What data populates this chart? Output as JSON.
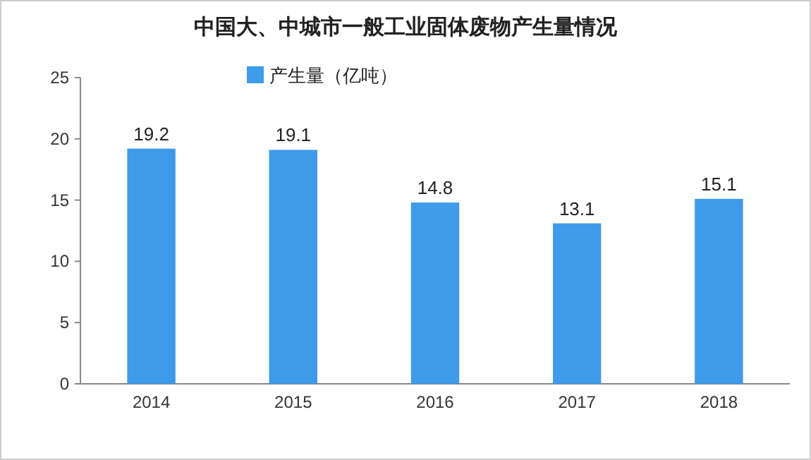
{
  "chart_data": {
    "type": "bar",
    "title": "中国大、中城市一般工业固体废物产生量情况",
    "categories": [
      "2014",
      "2015",
      "2016",
      "2017",
      "2018"
    ],
    "series": [
      {
        "name": "产生量（亿吨）",
        "color": "#3d9be9",
        "values": [
          19.2,
          19.1,
          14.8,
          13.1,
          15.1
        ]
      }
    ],
    "ylim": [
      0,
      25
    ],
    "yticks": [
      0,
      5,
      10,
      15,
      20,
      25
    ],
    "data_labels": true,
    "legend": "top"
  }
}
